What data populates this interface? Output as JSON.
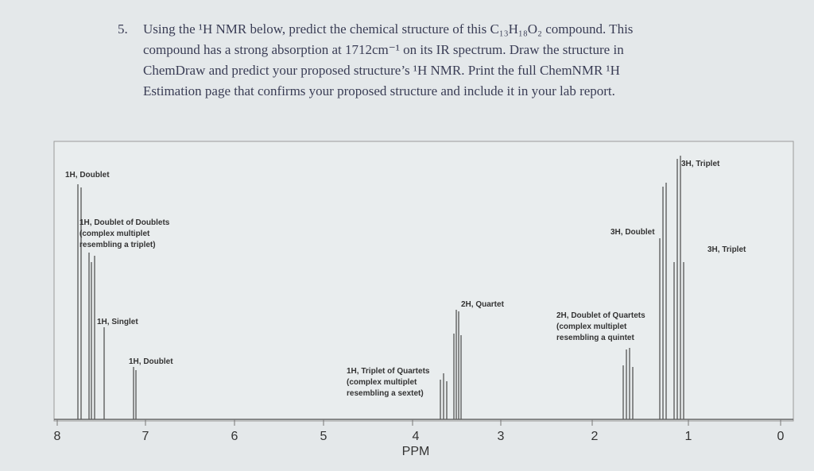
{
  "question": {
    "number": "5.",
    "lines": [
      "Using the ¹H NMR below, predict the chemical structure of this C₁₃H₁₈O₂ compound.  This",
      "compound has a strong absorption at 1712cm⁻¹ on its IR spectrum.  Draw the structure in",
      "ChemDraw and predict your proposed structure’s ¹H NMR. Print the full ChemNMR ¹H",
      "Estimation page that confirms your proposed structure and include it in your lab report."
    ]
  },
  "spectrum": {
    "peak_labels": [
      [
        "1H, Doublet"
      ],
      [
        "1H, Doublet of Doublets",
        "(complex multiplet",
        "resembling a triplet)"
      ],
      [
        "1H, Singlet"
      ],
      [
        "1H, Doublet"
      ],
      [
        "1H, Triplet of Quartets",
        "(complex multiplet",
        "resembling a sextet)"
      ],
      [
        "2H, Quartet"
      ],
      [
        "2H, Doublet of Quartets",
        "(complex multiplet",
        "resembling a quintet"
      ],
      [
        "3H, Doublet"
      ],
      [
        "3H, Triplet"
      ],
      [
        "3H, Triplet"
      ]
    ],
    "axis_labels": [
      "8",
      "7",
      "6",
      "5",
      "4",
      "3",
      "2",
      "1",
      "0"
    ],
    "axis_title": "PPM"
  }
}
